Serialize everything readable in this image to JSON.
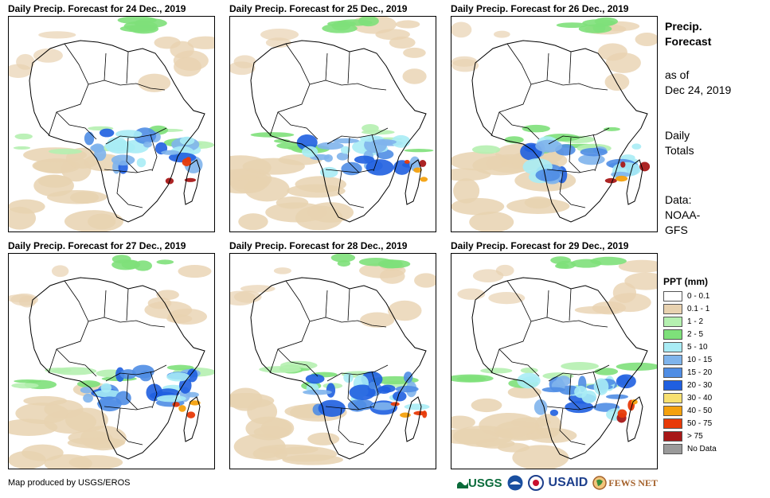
{
  "panels": [
    {
      "title": "Daily Precip. Forecast for 24 Dec., 2019"
    },
    {
      "title": "Daily Precip. Forecast for 25 Dec., 2019"
    },
    {
      "title": "Daily Precip. Forecast for 26 Dec., 2019"
    },
    {
      "title": "Daily Precip. Forecast for 27 Dec., 2019"
    },
    {
      "title": "Daily Precip. Forecast for 28 Dec., 2019"
    },
    {
      "title": "Daily Precip. Forecast for 29 Dec., 2019"
    }
  ],
  "sidebar": {
    "heading_line1": "Precip.",
    "heading_line2": "Forecast",
    "asof_line1": "as of",
    "asof_line2": "Dec 24, 2019",
    "totals_line1": "Daily",
    "totals_line2": "Totals",
    "data_line1": "Data:",
    "data_line2": "NOAA-",
    "data_line3": "GFS"
  },
  "legend": {
    "title": "PPT (mm)",
    "items": [
      {
        "label": "0 - 0.1",
        "color": "#ffffff"
      },
      {
        "label": "0.1 - 1",
        "color": "#e8d2b0"
      },
      {
        "label": "1 - 2",
        "color": "#b5f0b0"
      },
      {
        "label": "2 - 5",
        "color": "#7ee07a"
      },
      {
        "label": "5 - 10",
        "color": "#a9ecf5"
      },
      {
        "label": "10 - 15",
        "color": "#7fb4ec"
      },
      {
        "label": "15 - 20",
        "color": "#4f8de4"
      },
      {
        "label": "20 - 30",
        "color": "#1f5fe0"
      },
      {
        "label": "30 - 40",
        "color": "#f8e070"
      },
      {
        "label": "40 - 50",
        "color": "#f4a10e"
      },
      {
        "label": "50 - 75",
        "color": "#e83a08"
      },
      {
        "label": "> 75",
        "color": "#a81818"
      },
      {
        "label": "No Data",
        "color": "#9a9a9a"
      }
    ]
  },
  "footer": {
    "credit": "Map produced by USGS/EROS"
  },
  "logos": {
    "usgs": "USGS",
    "usaid": "USAID",
    "fewsnet": "FEWS NET"
  }
}
